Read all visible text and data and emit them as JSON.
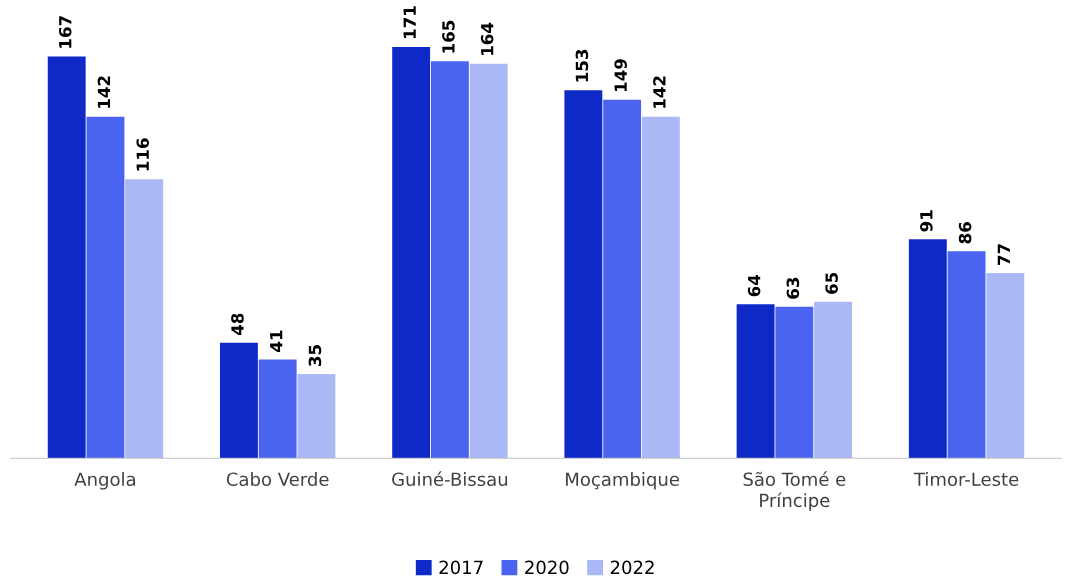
{
  "chart_data": {
    "type": "bar",
    "categories": [
      "Angola",
      "Cabo Verde",
      "Guiné-Bissau",
      "Moçambique",
      "São Tomé e\nPríncipe",
      "Timor-Leste"
    ],
    "series": [
      {
        "name": "2017",
        "color": "#0f28c8",
        "values": [
          167,
          48,
          171,
          153,
          64,
          91
        ]
      },
      {
        "name": "2020",
        "color": "#4a64f0",
        "values": [
          142,
          41,
          165,
          149,
          63,
          86
        ]
      },
      {
        "name": "2022",
        "color": "#aab8f5",
        "values": [
          116,
          35,
          164,
          142,
          65,
          77
        ]
      }
    ],
    "data_labels": true,
    "grid": false,
    "legend": "bottom"
  }
}
